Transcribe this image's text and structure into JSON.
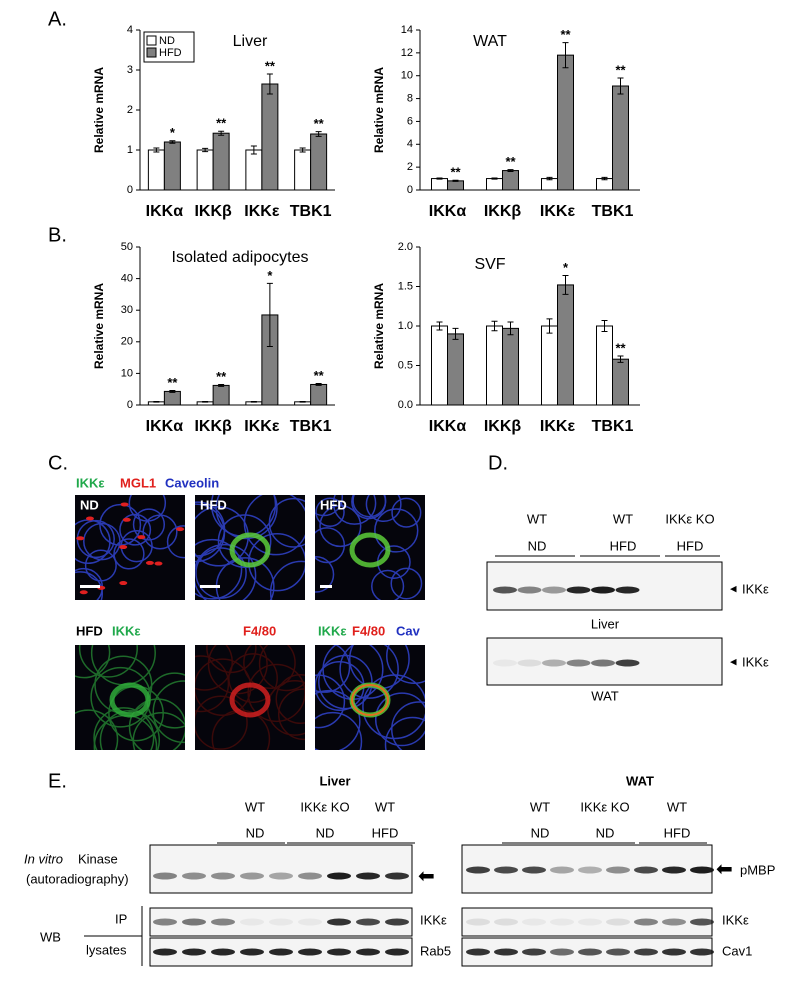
{
  "chart_data": [
    {
      "type": "bar",
      "title": "Liver",
      "y_label": "Relative mRNA",
      "categories": [
        "IKKα",
        "IKKβ",
        "IKKε",
        "TBK1"
      ],
      "series": [
        {
          "name": "ND",
          "color": "#ffffff",
          "values": [
            1,
            1,
            1,
            1
          ],
          "errors": [
            0.05,
            0.04,
            0.1,
            0.05
          ]
        },
        {
          "name": "HFD",
          "color": "#808080",
          "values": [
            1.2,
            1.42,
            2.65,
            1.4
          ],
          "errors": [
            0.03,
            0.05,
            0.25,
            0.06
          ]
        }
      ],
      "annotations": [
        "*",
        "**",
        "**",
        "**"
      ],
      "ylim": [
        0,
        4
      ],
      "yticks": [
        0,
        1,
        2,
        3,
        4
      ],
      "legend": "upper left"
    },
    {
      "type": "bar",
      "title": "WAT",
      "y_label": "Relative mRNA",
      "categories": [
        "IKKα",
        "IKKβ",
        "IKKε",
        "TBK1"
      ],
      "series": [
        {
          "color": "#ffffff",
          "values": [
            1,
            1,
            1,
            1
          ],
          "errors": [
            0.05,
            0.05,
            0.1,
            0.1
          ]
        },
        {
          "color": "#808080",
          "values": [
            0.8,
            1.7,
            11.8,
            9.1
          ],
          "errors": [
            0.05,
            0.08,
            1.1,
            0.7
          ]
        }
      ],
      "annotations": [
        "**",
        "**",
        "**",
        "**"
      ],
      "ylim": [
        0,
        14
      ],
      "yticks": [
        0,
        2,
        4,
        6,
        8,
        10,
        12,
        14
      ]
    },
    {
      "type": "bar",
      "title": "Isolated adipocytes",
      "y_label": "Relative mRNA",
      "categories": [
        "IKKα",
        "IKKβ",
        "IKKε",
        "TBK1"
      ],
      "series": [
        {
          "color": "#ffffff",
          "values": [
            1,
            1,
            1,
            1
          ],
          "errors": [
            0.1,
            0.1,
            0.1,
            0.1
          ]
        },
        {
          "color": "#808080",
          "values": [
            4.3,
            6.2,
            28.5,
            6.5
          ],
          "errors": [
            0.3,
            0.3,
            10,
            0.3
          ]
        }
      ],
      "annotations": [
        "**",
        "**",
        "*",
        "**"
      ],
      "ylim": [
        0,
        50
      ],
      "yticks": [
        0,
        10,
        20,
        30,
        40,
        50
      ]
    },
    {
      "type": "bar",
      "title": "SVF",
      "y_label": "Relative mRNA",
      "categories": [
        "IKKα",
        "IKKβ",
        "IKKε",
        "TBK1"
      ],
      "series": [
        {
          "color": "#ffffff",
          "values": [
            1.0,
            1.0,
            1.0,
            1.0
          ],
          "errors": [
            0.05,
            0.06,
            0.09,
            0.07
          ]
        },
        {
          "color": "#808080",
          "values": [
            0.9,
            0.97,
            1.52,
            0.58
          ],
          "errors": [
            0.07,
            0.08,
            0.12,
            0.04
          ]
        }
      ],
      "annotations": [
        null,
        null,
        "*",
        "**"
      ],
      "ylim": [
        0,
        2.0
      ],
      "yticks": [
        {
          "value": 0,
          "label": "0.0"
        },
        {
          "value": 0.5,
          "label": "0.5"
        },
        {
          "value": 1.0,
          "label": "1.0"
        },
        {
          "value": 1.5,
          "label": "1.5"
        },
        {
          "value": 2.0,
          "label": "2.0"
        }
      ]
    }
  ],
  "figure": {
    "panel_labels": [
      "A.",
      "B.",
      "C.",
      "D.",
      "E."
    ],
    "panel_c": {
      "stain_top": [
        "IKKε",
        "MGL1",
        "Caveolin"
      ],
      "image_labels": [
        "ND",
        "HFD",
        "HFD"
      ],
      "row2_group": "HFD",
      "row2_labels": [
        "IKKε",
        "F4/80"
      ],
      "merge": [
        "IKKε",
        "F4/80",
        "Cav"
      ]
    },
    "panel_d": {
      "groups": [
        [
          "WT",
          "ND"
        ],
        [
          "WT",
          "HFD"
        ],
        [
          "IKKε KO",
          "HFD"
        ]
      ],
      "band": "IKKε",
      "blots": [
        "Liver",
        "WAT"
      ]
    },
    "panel_e": {
      "titles": [
        "Liver",
        "WAT"
      ],
      "groups": [
        [
          "WT",
          "ND"
        ],
        [
          "IKKε KO",
          "ND"
        ],
        [
          "WT",
          "HFD"
        ]
      ],
      "kinase_label": [
        "In vitro",
        "Kinase",
        "(autoradiography)"
      ],
      "wb": "WB",
      "rows": [
        "IP",
        "lysates"
      ],
      "liver_bands": [
        "IKKε",
        "Rab5"
      ],
      "wat_bands": [
        "pMBP",
        "IKKε",
        "Cav1"
      ]
    }
  }
}
